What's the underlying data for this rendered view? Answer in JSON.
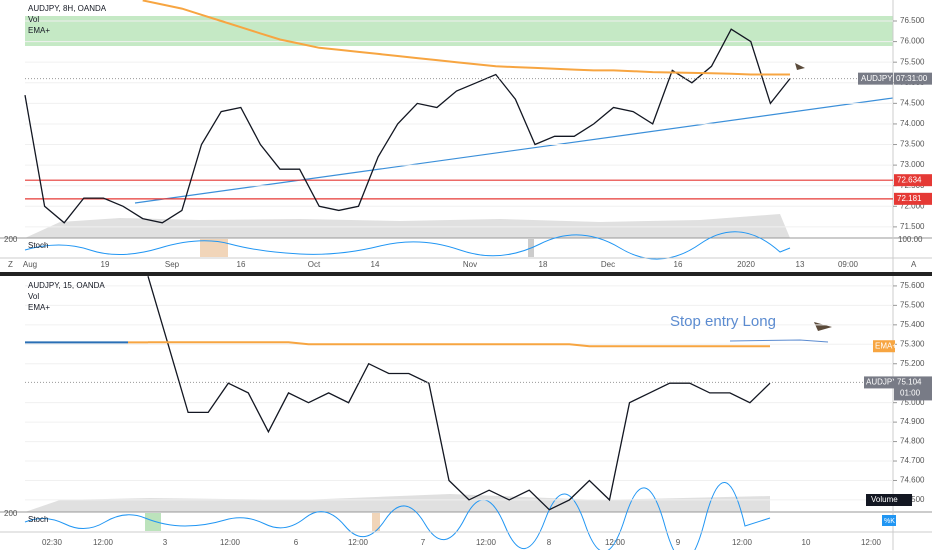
{
  "chart_data": [
    {
      "type": "line",
      "title": "AUDJPY, 8H, OANDA",
      "volume_label": "Vol",
      "stoch_label": "Stoch",
      "stoch_scale": "200",
      "stoch_tick": "100.00",
      "series": [
        {
          "name": "AUDJPY",
          "color": "#131722",
          "values": [
            74.7,
            72.0,
            71.6,
            72.2,
            72.2,
            72.0,
            71.7,
            71.6,
            71.9,
            73.5,
            74.3,
            74.4,
            73.5,
            72.9,
            72.9,
            72.0,
            71.9,
            72.0,
            73.2,
            74.0,
            74.5,
            74.4,
            74.8,
            75.0,
            75.2,
            74.6,
            73.5,
            73.7,
            73.7,
            74.0,
            74.4,
            74.3,
            74.0,
            75.3,
            75.0,
            75.4,
            76.3,
            76.0,
            74.5,
            75.1
          ]
        },
        {
          "name": "EMA+",
          "color": "#f7a541",
          "values": [
            null,
            null,
            null,
            null,
            null,
            null,
            77.0,
            76.9,
            76.8,
            76.65,
            76.5,
            76.35,
            76.2,
            76.05,
            75.95,
            75.85,
            75.8,
            75.75,
            75.7,
            75.65,
            75.6,
            75.55,
            75.5,
            75.45,
            75.4,
            75.38,
            75.36,
            75.34,
            75.32,
            75.3,
            75.3,
            75.28,
            75.26,
            75.25,
            75.24,
            75.23,
            75.22,
            75.2,
            75.2,
            75.2
          ]
        }
      ],
      "ylim": [
        71.23,
        77.01
      ],
      "yticks": [
        {
          "value": 71.5,
          "label": "71.500"
        },
        {
          "value": 72.0,
          "label": "72.000"
        },
        {
          "value": 72.5,
          "label": "72.500"
        },
        {
          "value": 73.0,
          "label": "73.000"
        },
        {
          "value": 73.5,
          "label": "73.500"
        },
        {
          "value": 74.0,
          "label": "74.000"
        },
        {
          "value": 74.5,
          "label": "74.500"
        },
        {
          "value": 75.0,
          "label": "75.000"
        },
        {
          "value": 75.5,
          "label": "75.500"
        },
        {
          "value": 76.0,
          "label": "76.000"
        },
        {
          "value": 76.5,
          "label": "76.500"
        }
      ],
      "levels": [
        {
          "value": 72.634,
          "label": "72.634"
        },
        {
          "value": 72.181,
          "label": "72.181"
        }
      ],
      "price_badge": {
        "symbol": "AUDJPY",
        "text": "07:31:00"
      },
      "time_labels": [
        "Aug",
        "19",
        "Sep",
        "16",
        "Oct",
        "14",
        "Nov",
        "18",
        "Dec",
        "16",
        "2020",
        "13",
        "09:00"
      ],
      "left_corner": "Z",
      "right_corner": "A"
    },
    {
      "type": "line",
      "title": "AUDJPY, 15, OANDA",
      "volume_label": "Vol",
      "stoch_label": "Stoch",
      "stoch_scale": "200",
      "stoch_badge": "%K",
      "annotation": "Stop entry Long",
      "volume_badge": "Volume",
      "series": [
        {
          "name": "AUDJPY",
          "color": "#131722",
          "values": [
            75.65,
            75.3,
            74.95,
            74.95,
            75.1,
            75.05,
            74.85,
            75.05,
            75.0,
            75.05,
            75.0,
            75.2,
            75.15,
            75.15,
            75.1,
            74.6,
            74.5,
            74.55,
            74.5,
            74.55,
            74.45,
            74.5,
            74.6,
            74.5,
            75.0,
            75.05,
            75.1,
            75.1,
            75.05,
            75.05,
            75.0,
            75.1
          ]
        },
        {
          "name": "EMA+",
          "color": "#f7a541",
          "values": [
            75.31,
            75.31,
            75.31,
            75.31,
            75.31,
            75.31,
            75.31,
            75.31,
            75.3,
            75.3,
            75.3,
            75.3,
            75.3,
            75.3,
            75.3,
            75.3,
            75.3,
            75.3,
            75.3,
            75.3,
            75.3,
            75.3,
            75.29,
            75.29,
            75.29,
            75.29,
            75.29,
            75.29,
            75.29,
            75.29,
            75.29,
            75.29
          ]
        }
      ],
      "ylim": [
        74.438,
        75.651
      ],
      "yticks": [
        {
          "value": 74.5,
          "label": "74.500"
        },
        {
          "value": 74.6,
          "label": "74.600"
        },
        {
          "value": 74.7,
          "label": "74.700"
        },
        {
          "value": 74.8,
          "label": "74.800"
        },
        {
          "value": 74.9,
          "label": "74.900"
        },
        {
          "value": 75.0,
          "label": "75.000"
        },
        {
          "value": 75.2,
          "label": "75.200"
        },
        {
          "value": 75.3,
          "label": "75.300"
        },
        {
          "value": 75.4,
          "label": "75.400"
        },
        {
          "value": 75.5,
          "label": "75.500"
        },
        {
          "value": 75.6,
          "label": "75.600"
        }
      ],
      "price_badge": {
        "symbol": "AUDJPY",
        "price": 75.104,
        "price_label": "75.104",
        "text": "01:00"
      },
      "time_labels": [
        "02:30",
        "12:00",
        "3",
        "12:00",
        "6",
        "12:00",
        "7",
        "12:00",
        "8",
        "12:00",
        "9",
        "12:00",
        "10",
        "12:00"
      ]
    }
  ]
}
